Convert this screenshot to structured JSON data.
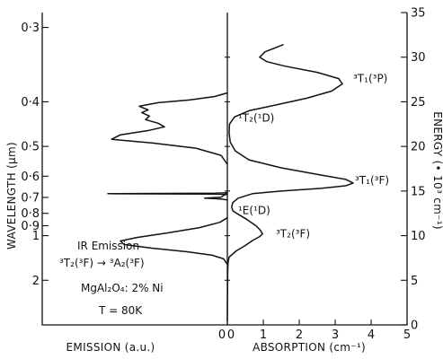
{
  "chart_data": {
    "type": "line",
    "title": "",
    "axes": {
      "left": {
        "label": "WAVELENGTH (µm)",
        "scale": "reciprocal (wavelength = 10 / energy)",
        "ticks": [
          {
            "value": 0.3,
            "label": "0·3"
          },
          {
            "value": 0.4,
            "label": "0·4"
          },
          {
            "value": 0.5,
            "label": "0·5"
          },
          {
            "value": 0.6,
            "label": "0·6"
          },
          {
            "value": 0.7,
            "label": "0·7"
          },
          {
            "value": 0.8,
            "label": "0·8"
          },
          {
            "value": 0.9,
            "label": "0·9"
          },
          {
            "value": 1,
            "label": "1"
          },
          {
            "value": 2,
            "label": "2"
          }
        ]
      },
      "right": {
        "label": "ENERGY (• 10³ cm⁻¹)",
        "range": [
          0,
          35
        ],
        "ticks": [
          {
            "value": 0,
            "label": "0"
          },
          {
            "value": 5,
            "label": "5"
          },
          {
            "value": 10,
            "label": "10"
          },
          {
            "value": 15,
            "label": "15"
          },
          {
            "value": 20,
            "label": "20"
          },
          {
            "value": 25,
            "label": "25"
          },
          {
            "value": 30,
            "label": "30"
          },
          {
            "value": 35,
            "label": "35"
          }
        ]
      },
      "bottom_absorption": {
        "label": "ABSORPTION (cm⁻¹)",
        "range": [
          0,
          5
        ],
        "ticks": [
          {
            "value": 0,
            "label": "0"
          },
          {
            "value": 1,
            "label": "1"
          },
          {
            "value": 2,
            "label": "2"
          },
          {
            "value": 3,
            "label": "3"
          },
          {
            "value": 4,
            "label": "4"
          },
          {
            "value": 5,
            "label": "5"
          }
        ]
      },
      "bottom_emission": {
        "label": "EMISSION (a.u.)",
        "zero_label": "0"
      }
    },
    "series": [
      {
        "kind": "absorption",
        "x_unit": "cm-1",
        "y_unit": "10^3 cm-1",
        "points": [
          [
            0.0,
            0.5
          ],
          [
            0.01,
            6.0
          ],
          [
            0.02,
            7.0
          ],
          [
            0.05,
            7.6
          ],
          [
            0.25,
            8.3
          ],
          [
            0.5,
            8.9
          ],
          [
            0.72,
            9.5
          ],
          [
            0.9,
            9.9
          ],
          [
            0.98,
            10.2
          ],
          [
            0.92,
            10.6
          ],
          [
            0.8,
            11.1
          ],
          [
            0.55,
            11.8
          ],
          [
            0.3,
            12.4
          ],
          [
            0.15,
            12.8
          ],
          [
            0.12,
            13.2
          ],
          [
            0.15,
            13.7
          ],
          [
            0.3,
            14.2
          ],
          [
            0.7,
            14.7
          ],
          [
            1.5,
            15.0
          ],
          [
            2.6,
            15.3
          ],
          [
            3.3,
            15.6
          ],
          [
            3.5,
            15.9
          ],
          [
            3.3,
            16.3
          ],
          [
            2.6,
            16.8
          ],
          [
            1.5,
            17.6
          ],
          [
            0.6,
            18.5
          ],
          [
            0.22,
            19.5
          ],
          [
            0.08,
            20.5
          ],
          [
            0.05,
            21.5
          ],
          [
            0.06,
            22.5
          ],
          [
            0.2,
            23.3
          ],
          [
            0.6,
            24.0
          ],
          [
            1.3,
            24.6
          ],
          [
            2.2,
            25.4
          ],
          [
            2.9,
            26.2
          ],
          [
            3.2,
            27.0
          ],
          [
            3.1,
            27.6
          ],
          [
            2.5,
            28.3
          ],
          [
            1.6,
            29.0
          ],
          [
            1.1,
            29.5
          ],
          [
            0.9,
            30.0
          ],
          [
            1.05,
            30.6
          ],
          [
            1.3,
            31.0
          ],
          [
            1.55,
            31.4
          ]
        ]
      },
      {
        "kind": "emission",
        "x_unit": "arbitrary (increasing to the left)",
        "y_unit": "10^3 cm-1",
        "points": [
          [
            0.0,
            6.8
          ],
          [
            0.03,
            7.4
          ],
          [
            0.12,
            7.8
          ],
          [
            0.32,
            8.2
          ],
          [
            0.6,
            8.6
          ],
          [
            0.82,
            9.0
          ],
          [
            0.85,
            9.4
          ],
          [
            0.72,
            9.8
          ],
          [
            0.48,
            10.3
          ],
          [
            0.22,
            10.9
          ],
          [
            0.06,
            11.5
          ],
          [
            0.0,
            12.0
          ]
        ]
      },
      {
        "kind": "emission",
        "x_unit": "arbitrary (increasing to the left)",
        "y_unit": "10^3 cm-1",
        "points": [
          [
            0.0,
            14.6
          ],
          [
            0.1,
            14.65
          ],
          [
            0.95,
            14.7
          ],
          [
            0.1,
            14.75
          ],
          [
            0.0,
            14.8
          ],
          [
            0.05,
            14.3
          ],
          [
            0.18,
            14.2
          ],
          [
            0.05,
            14.1
          ],
          [
            0.0,
            14.0
          ]
        ]
      },
      {
        "kind": "emission",
        "x_unit": "arbitrary (increasing to the left)",
        "y_unit": "10^3 cm-1",
        "points": [
          [
            0.0,
            18.0
          ],
          [
            0.05,
            19.0
          ],
          [
            0.25,
            19.8
          ],
          [
            0.6,
            20.4
          ],
          [
            0.92,
            20.8
          ],
          [
            0.85,
            21.3
          ],
          [
            0.62,
            21.8
          ],
          [
            0.5,
            22.2
          ],
          [
            0.55,
            22.6
          ],
          [
            0.65,
            23.0
          ],
          [
            0.62,
            23.4
          ],
          [
            0.68,
            23.8
          ],
          [
            0.63,
            24.1
          ],
          [
            0.7,
            24.5
          ],
          [
            0.55,
            24.9
          ],
          [
            0.3,
            25.2
          ],
          [
            0.1,
            25.6
          ],
          [
            0.0,
            26.0
          ]
        ]
      }
    ],
    "annotations": [
      {
        "id": "t1p",
        "text": "³T₁(³P)",
        "energy": 27.6,
        "absorption": 3.5
      },
      {
        "id": "t2d",
        "text": "¹T₂(¹D)",
        "energy": 23.2,
        "absorption": 0.3
      },
      {
        "id": "t1f",
        "text": "³T₁(³F)",
        "energy": 16.2,
        "absorption": 3.55
      },
      {
        "id": "ed",
        "text": "¹E(¹D)",
        "energy": 12.8,
        "absorption": 0.3
      },
      {
        "id": "t2f",
        "text": "³T₂(³F)",
        "energy": 10.2,
        "absorption": 1.35
      }
    ],
    "emission_labels": [
      {
        "id": "ir",
        "text": "IR Emission"
      },
      {
        "id": "transition",
        "text": "³T₂(³F) → ³A₂(³F)"
      },
      {
        "id": "sample",
        "text": "MgAl₂O₄: 2% Ni"
      },
      {
        "id": "temp",
        "text": "T = 80K"
      }
    ],
    "grid": false,
    "legend": "none"
  }
}
